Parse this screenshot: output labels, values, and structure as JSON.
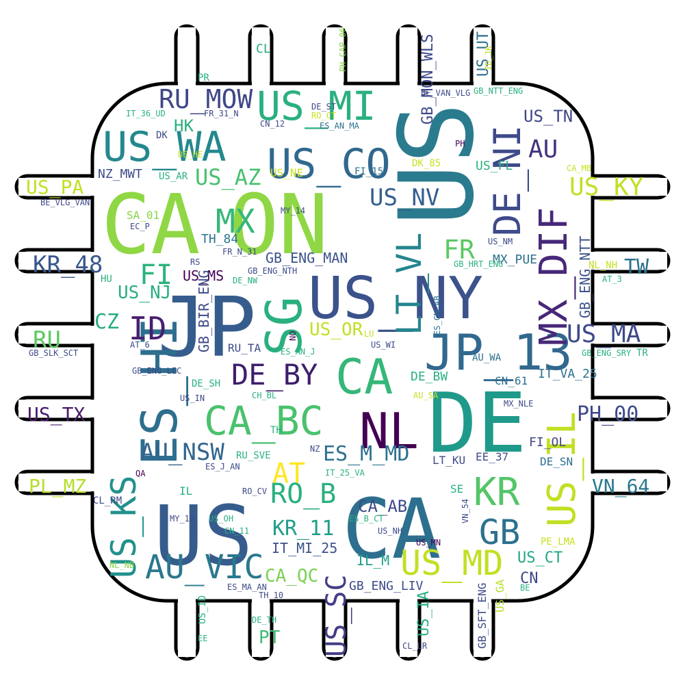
{
  "title": "",
  "words": [
    {
      "text": "US",
      "color": "#2b7b8e",
      "rot": -90
    },
    {
      "text": "CA",
      "color": "#8fd744",
      "rot": 0
    },
    {
      "text": "ON",
      "color": "#8fd744",
      "rot": 0
    },
    {
      "text": "JP",
      "color": "#365c8d",
      "rot": 0
    },
    {
      "text": "US",
      "color": "#365c8d",
      "rot": 0
    },
    {
      "text": "CA",
      "color": "#2d6f8e",
      "rot": 0
    },
    {
      "text": "DE",
      "color": "#1f9a8a",
      "rot": 0
    },
    {
      "text": "US_NY",
      "color": "#3b528b",
      "rot": 0
    },
    {
      "text": "SG",
      "color": "#2ab07f",
      "rot": -90
    },
    {
      "text": "ES_HI",
      "color": "#2e6e8e",
      "rot": -90
    },
    {
      "text": "CA",
      "color": "#35b779",
      "rot": 0
    },
    {
      "text": "NL",
      "color": "#440154",
      "rot": 0
    },
    {
      "text": "JP_13",
      "color": "#31688e",
      "rot": 0
    },
    {
      "text": "US_WA",
      "color": "#23888e",
      "rot": 0
    },
    {
      "text": "US_CO",
      "color": "#31688e",
      "rot": 0
    },
    {
      "text": "US_MI",
      "color": "#2ab07f",
      "rot": 0
    },
    {
      "text": "DE_NI",
      "color": "#3e4a89",
      "rot": -90
    },
    {
      "text": "MX_DIF",
      "color": "#482878",
      "rot": -90
    },
    {
      "text": "US_IL",
      "color": "#c2df23",
      "rot": -90
    },
    {
      "text": "CA_BC",
      "color": "#4ac16d",
      "rot": 0
    },
    {
      "text": "US_KS",
      "color": "#21918c",
      "rot": -90
    },
    {
      "text": "LT_VL",
      "color": "#25858e",
      "rot": -90
    },
    {
      "text": "RU_MOW",
      "color": "#3f4788",
      "rot": 0
    },
    {
      "text": "KR",
      "color": "#54c568",
      "rot": 0
    },
    {
      "text": "GB",
      "color": "#2c728e",
      "rot": 0
    },
    {
      "text": "AU_VIC",
      "color": "#2a788e",
      "rot": 0
    },
    {
      "text": "US_MD",
      "color": "#c2df23",
      "rot": 0
    },
    {
      "text": "MX",
      "color": "#35b779",
      "rot": 0
    },
    {
      "text": "ID",
      "color": "#481f70",
      "rot": 0
    },
    {
      "text": "DE_BY",
      "color": "#3e1e6c",
      "rot": 0
    },
    {
      "text": "RO_B",
      "color": "#2ab07f",
      "rot": 0
    },
    {
      "text": "US_SC",
      "color": "#433e85",
      "rot": -90
    },
    {
      "text": "AU_NSW",
      "color": "#32658e",
      "rot": 0
    },
    {
      "text": "US_NV",
      "color": "#355f8d",
      "rot": 0
    },
    {
      "text": "FR",
      "color": "#5cc863",
      "rot": 0
    },
    {
      "text": "AU",
      "color": "#46337e",
      "rot": 0
    },
    {
      "text": "US_KY",
      "color": "#c2df23",
      "rot": 0
    },
    {
      "text": "US_MA",
      "color": "#3e4a89",
      "rot": 0
    },
    {
      "text": "KR_48",
      "color": "#39568c",
      "rot": 0
    },
    {
      "text": "FI",
      "color": "#2db27d",
      "rot": 0
    },
    {
      "text": "US_AZ",
      "color": "#46c06f",
      "rot": 0
    },
    {
      "text": "ES_M_MD",
      "color": "#2d708e",
      "rot": 0
    },
    {
      "text": "AT",
      "color": "#fde725",
      "rot": 0
    },
    {
      "text": "KR_11",
      "color": "#1f9e89",
      "rot": 0
    },
    {
      "text": "CA_AB",
      "color": "#3e4a89",
      "rot": 0
    },
    {
      "text": "CA_QC",
      "color": "#7ad151",
      "rot": 0
    },
    {
      "text": "PH_00",
      "color": "#3e4a89",
      "rot": 0
    },
    {
      "text": "US_TX",
      "color": "#481a6c",
      "rot": 0
    },
    {
      "text": "VN_64",
      "color": "#2a788e",
      "rot": 0
    },
    {
      "text": "US_PA",
      "color": "#c2df23",
      "rot": 0
    },
    {
      "text": "PL_MZ",
      "color": "#b5de2b",
      "rot": 0
    },
    {
      "text": "RU",
      "color": "#5ec962",
      "rot": 0
    },
    {
      "text": "CZ",
      "color": "#25ab82",
      "rot": 0
    },
    {
      "text": "US_OR",
      "color": "#c2df23",
      "rot": 0
    },
    {
      "text": "TW",
      "color": "#2c728e",
      "rot": 0
    },
    {
      "text": "US_NJ",
      "color": "#29af7f",
      "rot": 0
    },
    {
      "text": "GB_ENG_MAN",
      "color": "#3b528b",
      "rot": 0
    },
    {
      "text": "US_TN",
      "color": "#404688",
      "rot": 0
    },
    {
      "text": "GB_ENG_NTT",
      "color": "#3b528b",
      "rot": -90
    },
    {
      "text": "US_MS",
      "color": "#440154",
      "rot": 0
    },
    {
      "text": "IT_MI_25",
      "color": "#3b528b",
      "rot": 0
    },
    {
      "text": "US_CT",
      "color": "#22a884",
      "rot": 0
    },
    {
      "text": "CN",
      "color": "#404688",
      "rot": 0
    },
    {
      "text": "PT",
      "color": "#3dbc74",
      "rot": 0
    },
    {
      "text": "US_IA",
      "color": "#29af7f",
      "rot": -90
    },
    {
      "text": "GB_MON_WLS",
      "color": "#3e4a89",
      "rot": -90
    },
    {
      "text": "US_UT",
      "color": "#2e6e8e",
      "rot": -90
    },
    {
      "text": "MX_PUE",
      "color": "#2d708e",
      "rot": 0
    },
    {
      "text": "GB_BIR_ENG",
      "color": "#3e4a89",
      "rot": -90
    },
    {
      "text": "TH_84",
      "color": "#2b748e",
      "rot": 0
    },
    {
      "text": "US_FL",
      "color": "#2ab07f",
      "rot": 0
    },
    {
      "text": "US_NE",
      "color": "#c8e020",
      "rot": 0
    },
    {
      "text": "HK",
      "color": "#2ab07f",
      "rot": 0
    },
    {
      "text": "SA_01",
      "color": "#86d549",
      "rot": 0
    },
    {
      "text": "CL",
      "color": "#25ab82",
      "rot": 0
    },
    {
      "text": "IL_M",
      "color": "#1f9e89",
      "rot": 0
    },
    {
      "text": "GB_ENG_LIV",
      "color": "#3e4a89",
      "rot": 0
    },
    {
      "text": "US_GA",
      "color": "#b8de29",
      "rot": -90
    },
    {
      "text": "GB_SFT_ENG",
      "color": "#3e4a89",
      "rot": -90
    },
    {
      "text": "DE_BW",
      "color": "#2ab07f",
      "rot": 0
    },
    {
      "text": "CN_61",
      "color": "#2d708e",
      "rot": 0
    },
    {
      "text": "IT_VA_25",
      "color": "#2d708e",
      "rot": 0
    },
    {
      "text": "FI_OL",
      "color": "#404688",
      "rot": 0
    },
    {
      "text": "EE_37",
      "color": "#3e4a89",
      "rot": 0
    },
    {
      "text": "DE_SN",
      "color": "#2d708e",
      "rot": 0
    },
    {
      "text": "LT_KU",
      "color": "#3e4a89",
      "rot": 0
    },
    {
      "text": "RU_SVE",
      "color": "#2ab07f",
      "rot": 0
    },
    {
      "text": "US_AR",
      "color": "#2ab07f",
      "rot": 0
    },
    {
      "text": "NZ_MWT",
      "color": "#3e4a89",
      "rot": 0
    },
    {
      "text": "FI_15",
      "color": "#2d708e",
      "rot": 0
    },
    {
      "text": "DK_85",
      "color": "#c8e020",
      "rot": 0
    },
    {
      "text": "RU_TA",
      "color": "#3e4a89",
      "rot": 0
    },
    {
      "text": "ES_AN_J",
      "color": "#2ab07f",
      "rot": 0
    },
    {
      "text": "US_WI",
      "color": "#3e4a89",
      "rot": 0
    },
    {
      "text": "AU_WA",
      "color": "#2d708e",
      "rot": 0
    },
    {
      "text": "DE_SH",
      "color": "#2ab07f",
      "rot": 0
    },
    {
      "text": "CH_BL",
      "color": "#2ab07f",
      "rot": 0
    },
    {
      "text": "US_IN",
      "color": "#3e4a89",
      "rot": 0
    },
    {
      "text": "TH",
      "color": "#2ab07f",
      "rot": 0
    },
    {
      "text": "NZ",
      "color": "#3e4a89",
      "rot": 0
    },
    {
      "text": "IT_25_VA",
      "color": "#2ab07f",
      "rot": 0
    },
    {
      "text": "ES_J_AN",
      "color": "#3e4a89",
      "rot": 0
    },
    {
      "text": "QA",
      "color": "#440154",
      "rot": 0
    },
    {
      "text": "IL",
      "color": "#2ab07f",
      "rot": 0
    },
    {
      "text": "RO_CV",
      "color": "#3e4a89",
      "rot": 0
    },
    {
      "text": "CL_RM",
      "color": "#3e4a89",
      "rot": 0
    },
    {
      "text": "MY_10",
      "color": "#3e4a89",
      "rot": 0
    },
    {
      "text": "US_OH",
      "color": "#2ab07f",
      "rot": 0
    },
    {
      "text": "CN_11",
      "color": "#2ab07f",
      "rot": 0
    },
    {
      "text": "ES_B_CT",
      "color": "#2ab07f",
      "rot": 0
    },
    {
      "text": "US_NH",
      "color": "#3e4a89",
      "rot": 0
    },
    {
      "text": "US_MN",
      "color": "#440154",
      "rot": 0
    },
    {
      "text": "VN_54",
      "color": "#3e4a89",
      "rot": -90
    },
    {
      "text": "SE",
      "color": "#2ab07f",
      "rot": 0
    },
    {
      "text": "PE_LMA",
      "color": "#c8e020",
      "rot": 0
    },
    {
      "text": "ES_MA_AN",
      "color": "#3e4a89",
      "rot": 0
    },
    {
      "text": "TH_10",
      "color": "#3e4a89",
      "rot": 0
    },
    {
      "text": "DE_TH",
      "color": "#2ab07f",
      "rot": 0
    },
    {
      "text": "US_ID",
      "color": "#2ab07f",
      "rot": -90
    },
    {
      "text": "EE",
      "color": "#2ab07f",
      "rot": 0
    },
    {
      "text": "CL_LR",
      "color": "#3e4a89",
      "rot": 0
    },
    {
      "text": "BE",
      "color": "#2ab07f",
      "rot": 0
    },
    {
      "text": "NL_NB",
      "color": "#86d549",
      "rot": 0
    },
    {
      "text": "MX_NLE",
      "color": "#3e4a89",
      "rot": 0
    },
    {
      "text": "AU_SA",
      "color": "#c8e020",
      "rot": 0
    },
    {
      "text": "ES_CM_AB",
      "color": "#2d708e",
      "rot": -90
    },
    {
      "text": "NO",
      "color": "#440154",
      "rot": -90
    },
    {
      "text": "LU",
      "color": "#c8e020",
      "rot": 0
    },
    {
      "text": "AT_6",
      "color": "#3e4a89",
      "rot": 0
    },
    {
      "text": "GB_SLK_SCT",
      "color": "#3e4a89",
      "rot": 0
    },
    {
      "text": "GB_ENG_LEC",
      "color": "#3e4a89",
      "rot": 0
    },
    {
      "text": "GB_ENG_SRY",
      "color": "#2ab07f",
      "rot": 0
    },
    {
      "text": "TR",
      "color": "#2ab07f",
      "rot": 0
    },
    {
      "text": "NL_NH",
      "color": "#c8e020",
      "rot": 0
    },
    {
      "text": "AT_3",
      "color": "#2ab07f",
      "rot": 0
    },
    {
      "text": "GB_HRT_ENG",
      "color": "#2ab07f",
      "rot": 0
    },
    {
      "text": "US_NM",
      "color": "#3e4a89",
      "rot": 0
    },
    {
      "text": "HU",
      "color": "#2ab07f",
      "rot": 0
    },
    {
      "text": "RS",
      "color": "#3e4a89",
      "rot": 0
    },
    {
      "text": "FR_N_31",
      "color": "#3e4a89",
      "rot": 0
    },
    {
      "text": "GB_ENG_NTH",
      "color": "#3e4a89",
      "rot": 0
    },
    {
      "text": "DE_NW",
      "color": "#2ab07f",
      "rot": 0
    },
    {
      "text": "MY_14",
      "color": "#3e4a89",
      "rot": 0
    },
    {
      "text": "EC_P",
      "color": "#3e4a89",
      "rot": 0
    },
    {
      "text": "BE_VLG_VAN",
      "color": "#3e4a89",
      "rot": 0
    },
    {
      "text": "DE_HE",
      "color": "#c8e020",
      "rot": 0
    },
    {
      "text": "DK",
      "color": "#3e4a89",
      "rot": 0
    },
    {
      "text": "IT_36_UD",
      "color": "#2ab07f",
      "rot": 0
    },
    {
      "text": "FR_31_N",
      "color": "#3e4a89",
      "rot": 0
    },
    {
      "text": "CN_12",
      "color": "#3e4a89",
      "rot": 0
    },
    {
      "text": "DE_ST",
      "color": "#3e4a89",
      "rot": 0
    },
    {
      "text": "RO_CT",
      "color": "#c8e020",
      "rot": 0
    },
    {
      "text": "ES_AN_MA",
      "color": "#2d708e",
      "rot": 0
    },
    {
      "text": "PR",
      "color": "#2ab07f",
      "rot": 0
    },
    {
      "text": "PH_CAP_06",
      "color": "#86d549",
      "rot": -90
    },
    {
      "text": "PH",
      "color": "#440154",
      "rot": 0
    },
    {
      "text": "BE_VAN_VLG",
      "color": "#3e4a89",
      "rot": 0
    },
    {
      "text": "GB_NTT_ENG",
      "color": "#2ab07f",
      "rot": 0
    },
    {
      "text": "ID_JK",
      "color": "#c8e020",
      "rot": -90
    },
    {
      "text": "CA_MB",
      "color": "#c8e020",
      "rot": 0
    }
  ],
  "colors": {
    "background": "#ffffff",
    "outline": "#000000"
  }
}
